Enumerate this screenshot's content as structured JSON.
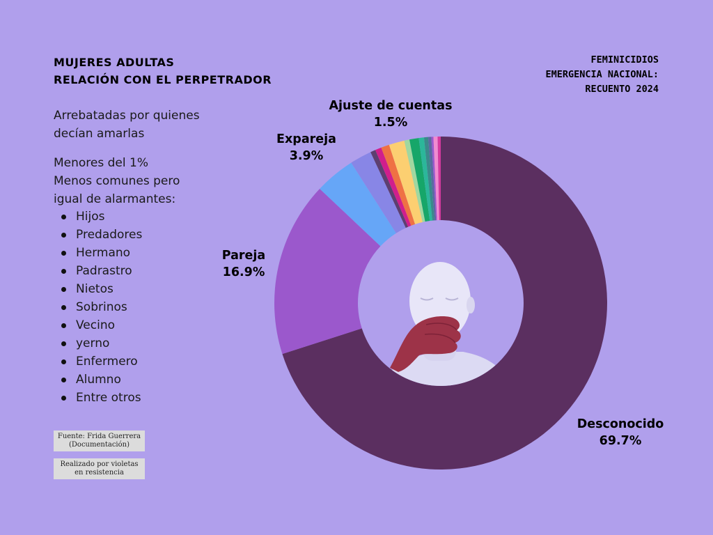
{
  "title": {
    "line1": "MUJERES ADULTAS",
    "line2": "RELACIÓN CON EL PERPETRADOR"
  },
  "subtitle": {
    "line1": "FEMINICIDIOS",
    "line2": "EMERGENCIA NACIONAL:",
    "line3": "RECUENTO 2024"
  },
  "side": {
    "text1": "Arrebatadas por quienes",
    "text2": "decían amarlas",
    "text3": "Menores del 1%",
    "text4": "Menos comunes pero",
    "text5": "igual de alarmantes:",
    "items": [
      "Hijos",
      "Predadores",
      "Hermano",
      "Padrastro",
      "Nietos",
      "Sobrinos",
      "Vecino",
      "yerno",
      "Enfermero",
      "Alumno",
      "Entre otros"
    ]
  },
  "notes": {
    "source_line1": "Fuente: Frida Guerrera",
    "source_line2": "(Documentación)",
    "credit_line1": "Realizado por violetas",
    "credit_line2": "en resistencia"
  },
  "chart_data": {
    "type": "pie",
    "donut": true,
    "slices": [
      {
        "name": "Desconocido",
        "value": 69.7,
        "value_label": "69.7%",
        "color": "#5b2f60"
      },
      {
        "name": "Pareja",
        "value": 16.9,
        "value_label": "16.9%",
        "color": "#9b58cc"
      },
      {
        "name": "Expareja",
        "value": 3.9,
        "value_label": "3.9%",
        "color": "#66a6f7"
      },
      {
        "name": "",
        "value": 2.1,
        "color": "#8886e6"
      },
      {
        "name": "",
        "value": 0.5,
        "color": "#5d3f70"
      },
      {
        "name": "",
        "value": 0.6,
        "color": "#d01e8c"
      },
      {
        "name": "",
        "value": 0.8,
        "color": "#ef7144"
      },
      {
        "name": "Ajuste de cuentas",
        "value": 1.5,
        "value_label": "1.5%",
        "color": "#fccf71"
      },
      {
        "name": "",
        "value": 0.5,
        "color": "#a0d8a0"
      },
      {
        "name": "",
        "value": 0.9,
        "color": "#16a669"
      },
      {
        "name": "",
        "value": 0.5,
        "color": "#2bb79a"
      },
      {
        "name": "",
        "value": 0.4,
        "color": "#3a8a8a"
      },
      {
        "name": "",
        "value": 0.3,
        "color": "#5b6aa0"
      },
      {
        "name": "",
        "value": 0.2,
        "color": "#9b58cc"
      },
      {
        "name": "",
        "value": 0.4,
        "color": "#f08bd0"
      },
      {
        "name": "",
        "value": 0.3,
        "color": "#d53a9e"
      }
    ]
  }
}
